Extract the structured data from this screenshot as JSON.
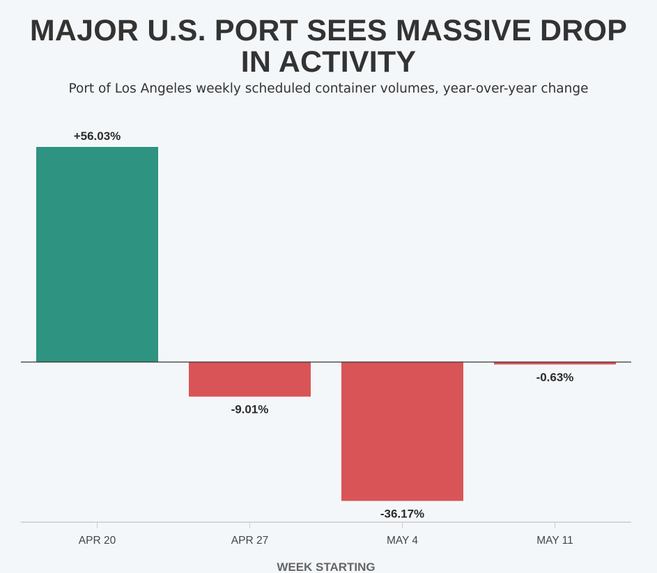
{
  "chart_data": {
    "type": "bar",
    "title": "MAJOR U.S. PORT SEES MASSIVE DROP IN ACTIVITY",
    "subtitle": "Port of Los Angeles weekly scheduled container volumes, year-over-year change",
    "xlabel": "WEEK STARTING",
    "ylabel": "",
    "categories": [
      "APR 20",
      "APR 27",
      "MAY 4",
      "MAY 11"
    ],
    "values": [
      56.03,
      -9.01,
      -36.17,
      -0.63
    ],
    "data_labels": [
      "+56.03%",
      "-9.01%",
      "-36.17%",
      "-0.63%"
    ],
    "ylim": [
      -42,
      56.03
    ],
    "grid": false,
    "legend": "none",
    "colors": {
      "positive": "#2e9380",
      "negative": "#d95457",
      "zero_line": "#333333",
      "axis_line": "#cccccc",
      "background": "#f4f7fa"
    }
  }
}
